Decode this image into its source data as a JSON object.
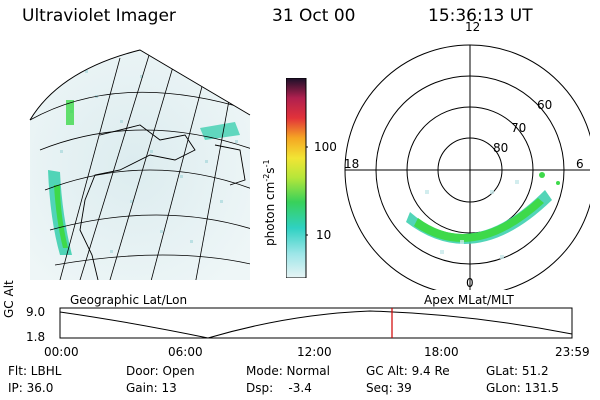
{
  "header": {
    "instrument": "Ultraviolet Imager",
    "date": "31 Oct 00",
    "time": "15:36:13 UT"
  },
  "colorbar": {
    "unit_label": "photon cm",
    "unit_exp1": "-2",
    "unit_s": "s",
    "unit_exp2": "-1",
    "ticks": [
      "100",
      "10"
    ]
  },
  "panels": {
    "left_label": "Geographic Lat/Lon",
    "right_label": "Apex MLat/MLT",
    "polar_mlt": [
      "12",
      "18",
      "6",
      "0"
    ],
    "polar_lat": [
      "60",
      "70",
      "80"
    ]
  },
  "altitude_plot": {
    "ylabel": "GC Alt",
    "ytick_top": "9.0",
    "ytick_bottom": "1.8",
    "xticks": [
      "00:00",
      "06:00",
      "12:00",
      "18:00",
      "23:59"
    ]
  },
  "status": {
    "row1": {
      "filter": "Flt: LBHL",
      "door": "Door: Open",
      "mode": "Mode: Normal",
      "gc_alt": "GC Alt: 9.4 Re",
      "glat": "GLat: 51.2"
    },
    "row2": {
      "ip": "IP: 36.0",
      "gain": "Gain: 13",
      "dsp": "Dsp:    -3.4",
      "seq": "Seq: 39",
      "glon": "GLon: 131.5"
    }
  },
  "colors": {
    "marker_line": "#d00000",
    "aurora_green": "#3ed94a",
    "aurora_teal": "#3fd0b0",
    "haze": "#cfe8ea"
  }
}
